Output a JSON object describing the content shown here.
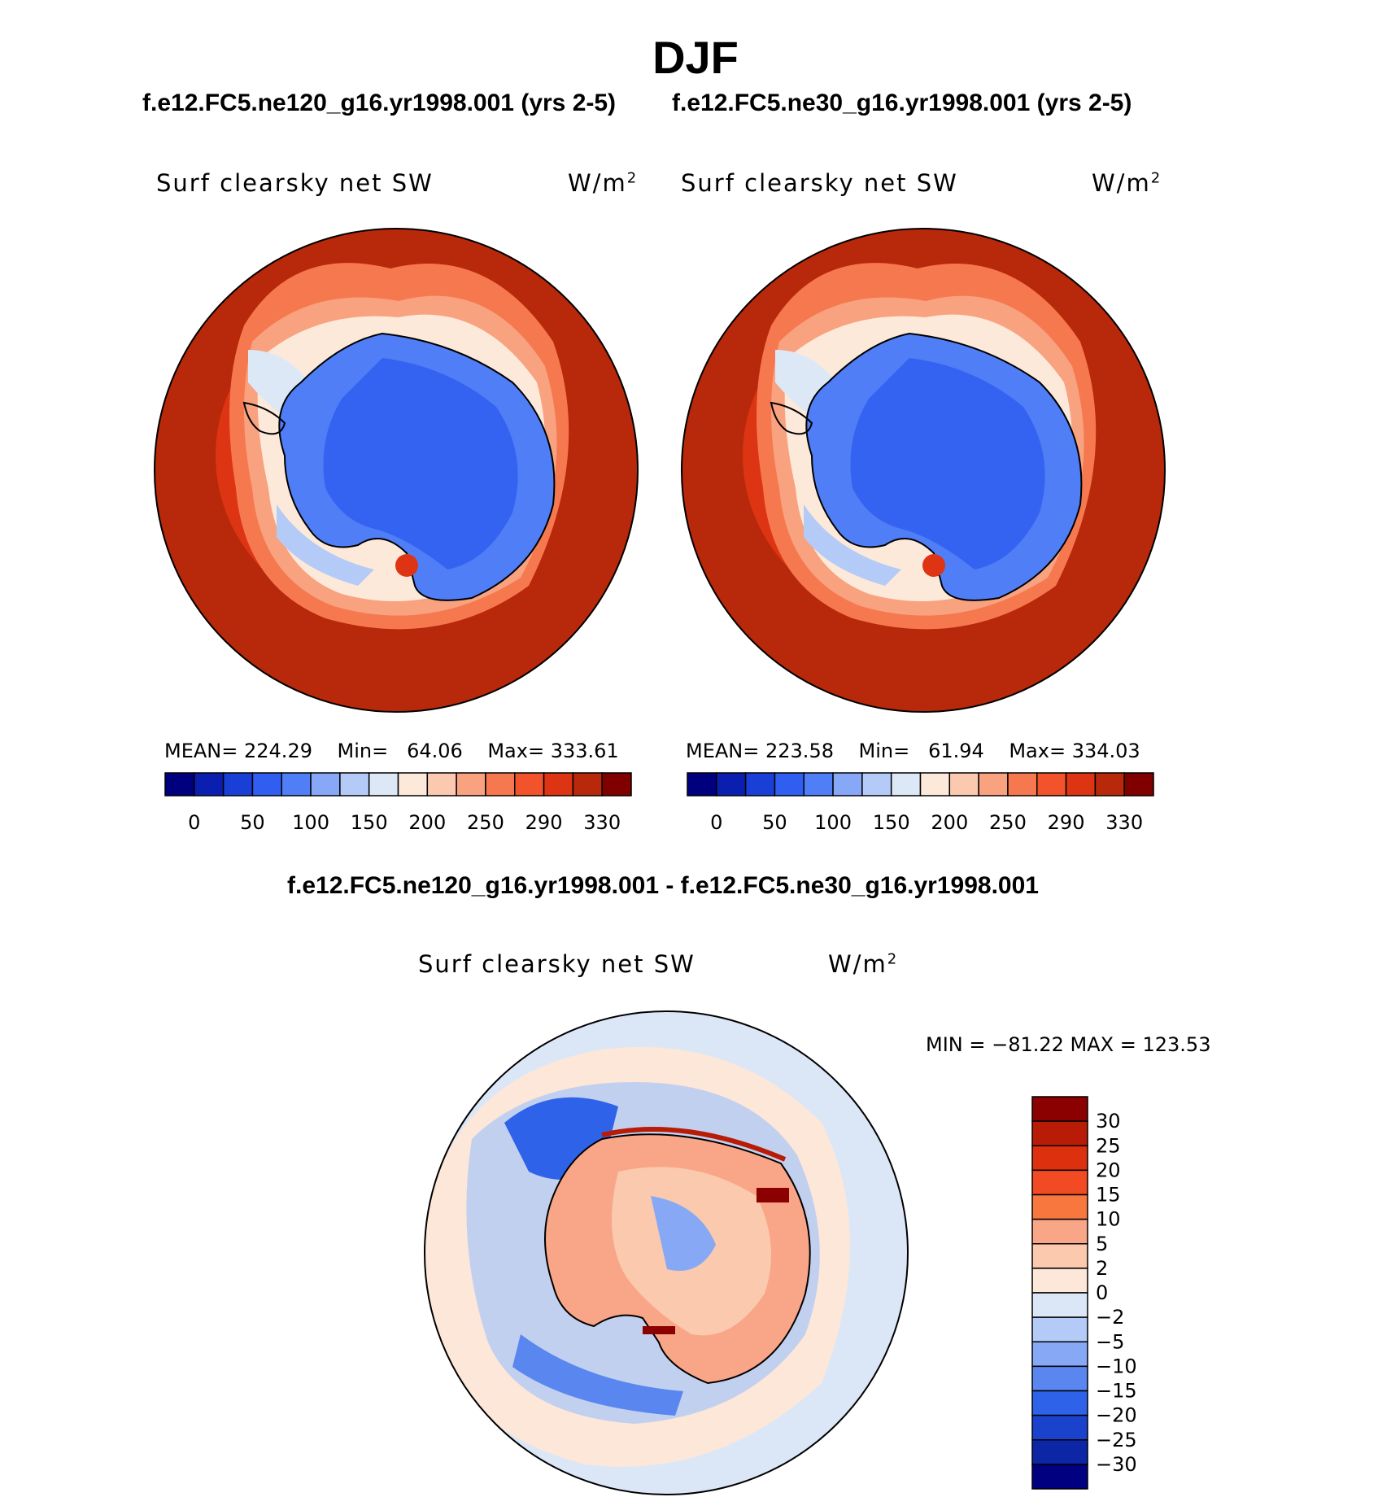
{
  "title": "DJF",
  "panels": [
    {
      "case_title": "f.e12.FC5.ne120_g16.yr1998.001 (yrs 2-5)",
      "variable": "Surf clearsky net SW",
      "units_base": "W/m",
      "units_exp": "2",
      "stats": {
        "mean_label": "MEAN=",
        "mean": "224.29",
        "min_label": "Min=",
        "min": "64.06",
        "max_label": "Max=",
        "max": "333.61"
      }
    },
    {
      "case_title": "f.e12.FC5.ne30_g16.yr1998.001 (yrs 2-5)",
      "variable": "Surf clearsky net SW",
      "units_base": "W/m",
      "units_exp": "2",
      "stats": {
        "mean_label": "MEAN=",
        "mean": "223.58",
        "min_label": "Min=",
        "min": "61.94",
        "max_label": "Max=",
        "max": "334.03"
      }
    }
  ],
  "colorbar_abs": {
    "labels": [
      "0",
      "50",
      "100",
      "150",
      "200",
      "250",
      "290",
      "330"
    ],
    "colors": [
      "#00007f",
      "#0a1fb0",
      "#1a3fd6",
      "#2f5ef0",
      "#4f7ef7",
      "#86a8f7",
      "#b5cbf7",
      "#dde8f7",
      "#fde9da",
      "#fbc8b0",
      "#f8a27f",
      "#f6784f",
      "#f2532a",
      "#dd3413",
      "#b8280a",
      "#800000"
    ]
  },
  "difference": {
    "title": "f.e12.FC5.ne120_g16.yr1998.001 - f.e12.FC5.ne30_g16.yr1998.001",
    "variable": "Surf clearsky net SW",
    "units_base": "W/m",
    "units_exp": "2",
    "minmax": "MIN = −81.22 MAX = 123.53",
    "colorbar_labels": [
      "30",
      "25",
      "20",
      "15",
      "10",
      "5",
      "2",
      "0",
      "−2",
      "−5",
      "−10",
      "−15",
      "−20",
      "−25",
      "−30"
    ],
    "colors": [
      "#8b0000",
      "#b81c06",
      "#dc300f",
      "#f24a22",
      "#f7773f",
      "#f9a587",
      "#fbc9ae",
      "#fde7d8",
      "#dbe7f7",
      "#b3cbf6",
      "#87a9f5",
      "#5a86ef",
      "#2e62e8",
      "#1a42cc",
      "#0c26a6",
      "#000080"
    ]
  }
}
